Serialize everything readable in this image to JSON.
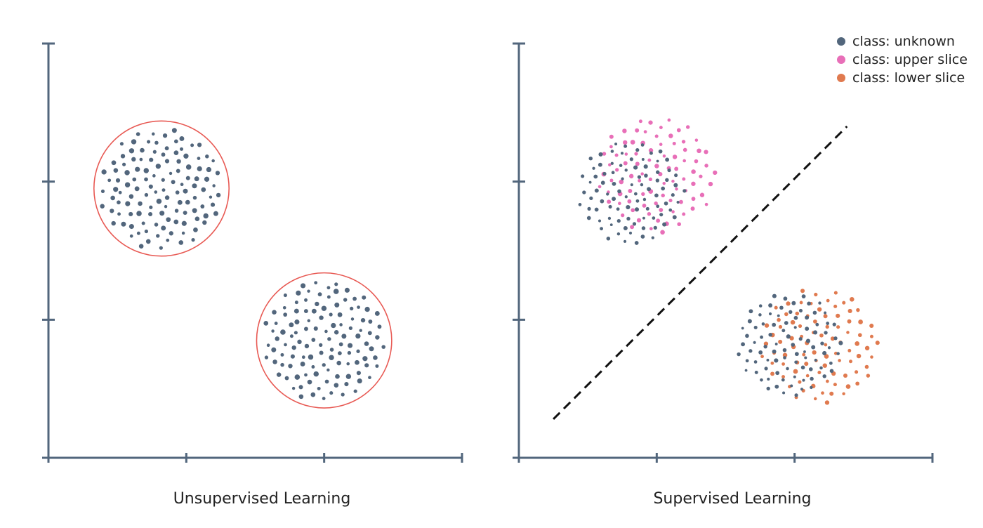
{
  "colors": {
    "axis": "#52667c",
    "unknown": "#52667c",
    "upper": "#e86fb8",
    "lower": "#e07a4f",
    "cluster_outline": "#e85a54",
    "boundary": "#111111"
  },
  "chart_data": [
    {
      "type": "scatter",
      "title": "",
      "xlabel": "Unsupervised Learning",
      "ylabel": "",
      "xlim": [
        0,
        3
      ],
      "ylim": [
        0,
        3
      ],
      "x_ticks": [
        0,
        1,
        2,
        3
      ],
      "y_ticks": [
        0,
        1,
        2,
        3
      ],
      "tick_labels_shown": false,
      "grid": false,
      "clusters": [
        {
          "center": [
            0.82,
            1.95
          ],
          "radius": 0.49,
          "outlined": true,
          "point_class": "unknown",
          "n_points": 120
        },
        {
          "center": [
            2.0,
            0.85
          ],
          "radius": 0.49,
          "outlined": true,
          "point_class": "unknown",
          "n_points": 120
        }
      ]
    },
    {
      "type": "scatter",
      "title": "",
      "xlabel": "Supervised Learning",
      "ylabel": "",
      "xlim": [
        0,
        3
      ],
      "ylim": [
        0,
        3
      ],
      "x_ticks": [
        0,
        1,
        2,
        3
      ],
      "y_ticks": [
        0,
        1,
        2,
        3
      ],
      "tick_labels_shown": false,
      "grid": false,
      "legend_position": "top-right",
      "series": [
        {
          "name": "class: unknown",
          "color_key": "unknown"
        },
        {
          "name": "class: upper slice",
          "color_key": "upper"
        },
        {
          "name": "class: lower slice",
          "color_key": "lower"
        }
      ],
      "clusters": [
        {
          "center": [
            0.85,
            1.95
          ],
          "radius": 0.45,
          "classes": [
            "unknown",
            "upper"
          ],
          "n_points": 180
        },
        {
          "center": [
            2.0,
            0.85
          ],
          "radius": 0.45,
          "classes": [
            "unknown",
            "lower"
          ],
          "n_points": 180
        }
      ],
      "decision_boundary": {
        "style": "dashed",
        "from": [
          0.25,
          0.28
        ],
        "to": [
          2.38,
          2.4
        ]
      }
    }
  ]
}
